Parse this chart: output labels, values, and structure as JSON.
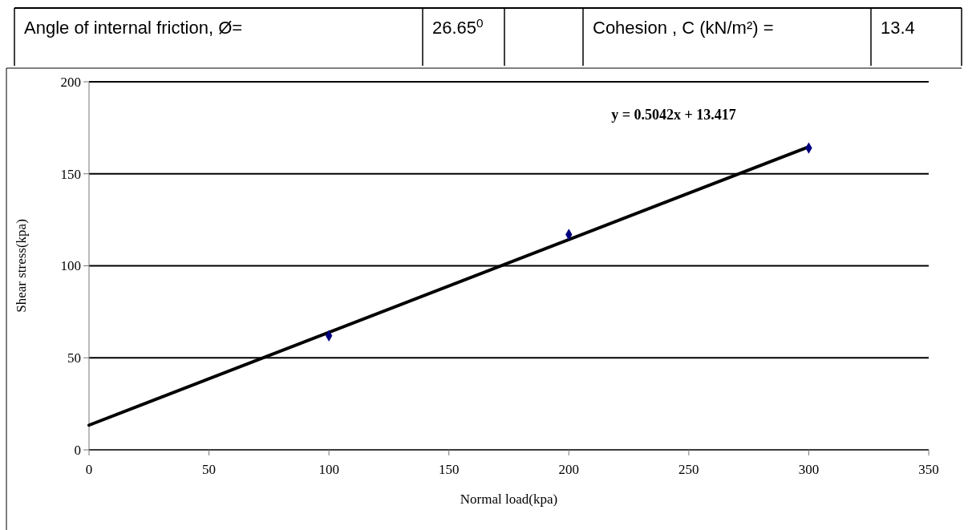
{
  "chart_data": {
    "type": "scatter",
    "xlabel": "Normal load(kpa)",
    "ylabel": "Shear stress(kpa)",
    "x": [
      100,
      200,
      300
    ],
    "series": [
      {
        "color": "#000080",
        "marker": "diamond",
        "values": [
          62,
          117,
          164
        ]
      },
      {
        "type": "line",
        "color": "#000000",
        "marker": "none",
        "x": [
          0,
          300
        ],
        "values": [
          13.4,
          164.7
        ]
      }
    ],
    "xlim": [
      0,
      350
    ],
    "xticks": [
      0,
      50,
      100,
      150,
      200,
      250,
      300,
      350
    ],
    "ylim": [
      0,
      200
    ],
    "yticks": [
      0,
      50,
      100,
      150,
      200
    ],
    "grid": "y",
    "annotations": [
      "y = 0.5042x + 13.417",
      "Angle of internal friction, Ø=",
      "26.65$^{0}$",
      "Cohesion , C (kN/m²) =",
      "13.4"
    ]
  }
}
